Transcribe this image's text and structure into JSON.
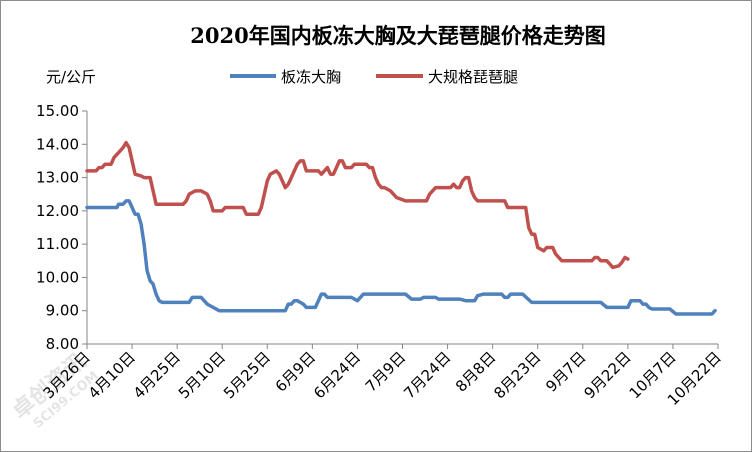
{
  "chart_data": {
    "type": "line",
    "title": "2020年国内板冻大胸及大琵琶腿价格走势图",
    "ylabel": "元/公斤",
    "xlabel": "",
    "ylim": [
      8.0,
      15.0
    ],
    "yticks": [
      "8.00",
      "9.00",
      "10.00",
      "11.00",
      "12.00",
      "13.00",
      "14.00",
      "15.00"
    ],
    "xticks": [
      "3月26日",
      "4月10日",
      "4月25日",
      "5月10日",
      "5月25日",
      "6月9日",
      "6月24日",
      "7月9日",
      "7月24日",
      "8月8日",
      "8月23日",
      "9月7日",
      "9月22日",
      "10月7日",
      "10月22日"
    ],
    "grid": false,
    "legend_position": "top",
    "series": [
      {
        "name": "板冻大胸",
        "color": "#4f81bd",
        "points": [
          [
            0,
            12.1
          ],
          [
            10,
            12.1
          ],
          [
            10.5,
            12.2
          ],
          [
            12,
            12.2
          ],
          [
            13,
            12.3
          ],
          [
            14,
            12.3
          ],
          [
            15,
            12.1
          ],
          [
            16,
            11.9
          ],
          [
            17,
            11.9
          ],
          [
            18,
            11.6
          ],
          [
            19,
            11.0
          ],
          [
            20,
            10.2
          ],
          [
            21,
            9.9
          ],
          [
            22,
            9.8
          ],
          [
            23,
            9.5
          ],
          [
            24,
            9.3
          ],
          [
            25,
            9.25
          ],
          [
            34,
            9.25
          ],
          [
            35,
            9.4
          ],
          [
            38,
            9.4
          ],
          [
            40,
            9.2
          ],
          [
            44,
            9.0
          ],
          [
            66,
            9.0
          ],
          [
            67,
            9.2
          ],
          [
            68,
            9.2
          ],
          [
            69,
            9.3
          ],
          [
            70,
            9.3
          ],
          [
            72,
            9.2
          ],
          [
            73,
            9.1
          ],
          [
            76,
            9.1
          ],
          [
            77,
            9.3
          ],
          [
            78,
            9.5
          ],
          [
            79,
            9.5
          ],
          [
            80,
            9.4
          ],
          [
            88,
            9.4
          ],
          [
            90,
            9.3
          ],
          [
            91,
            9.4
          ],
          [
            92,
            9.5
          ],
          [
            106,
            9.5
          ],
          [
            108,
            9.35
          ],
          [
            111,
            9.35
          ],
          [
            112,
            9.4
          ],
          [
            116,
            9.4
          ],
          [
            117,
            9.35
          ],
          [
            124,
            9.35
          ],
          [
            126,
            9.3
          ],
          [
            129,
            9.3
          ],
          [
            130,
            9.45
          ],
          [
            132,
            9.5
          ],
          [
            138,
            9.5
          ],
          [
            139,
            9.4
          ],
          [
            140,
            9.4
          ],
          [
            141,
            9.5
          ],
          [
            145,
            9.5
          ],
          [
            148,
            9.25
          ],
          [
            171,
            9.25
          ],
          [
            173,
            9.1
          ],
          [
            180,
            9.1
          ],
          [
            181,
            9.3
          ],
          [
            184,
            9.3
          ],
          [
            185,
            9.2
          ],
          [
            186,
            9.2
          ],
          [
            187,
            9.1
          ],
          [
            188,
            9.05
          ],
          [
            194,
            9.05
          ],
          [
            196,
            8.9
          ],
          [
            208,
            8.9
          ],
          [
            209,
            9.0
          ]
        ]
      },
      {
        "name": "大规格琵琶腿",
        "color": "#c0504d",
        "points": [
          [
            0,
            13.2
          ],
          [
            3,
            13.2
          ],
          [
            4,
            13.3
          ],
          [
            5,
            13.3
          ],
          [
            6,
            13.4
          ],
          [
            8,
            13.4
          ],
          [
            9,
            13.6
          ],
          [
            10,
            13.7
          ],
          [
            11,
            13.8
          ],
          [
            12,
            13.9
          ],
          [
            13,
            14.05
          ],
          [
            14,
            13.9
          ],
          [
            15,
            13.5
          ],
          [
            16,
            13.1
          ],
          [
            18,
            13.05
          ],
          [
            19,
            13.0
          ],
          [
            21,
            13.0
          ],
          [
            22,
            12.6
          ],
          [
            23,
            12.2
          ],
          [
            32,
            12.2
          ],
          [
            33,
            12.3
          ],
          [
            34,
            12.5
          ],
          [
            35,
            12.55
          ],
          [
            36,
            12.6
          ],
          [
            38,
            12.6
          ],
          [
            40,
            12.5
          ],
          [
            41,
            12.3
          ],
          [
            42,
            12.0
          ],
          [
            45,
            12.0
          ],
          [
            46,
            12.1
          ],
          [
            52,
            12.1
          ],
          [
            53,
            11.9
          ],
          [
            57,
            11.9
          ],
          [
            58,
            12.1
          ],
          [
            59,
            12.5
          ],
          [
            60,
            12.9
          ],
          [
            61,
            13.1
          ],
          [
            63,
            13.2
          ],
          [
            64,
            13.1
          ],
          [
            65,
            12.9
          ],
          [
            66,
            12.7
          ],
          [
            67,
            12.8
          ],
          [
            68,
            13.0
          ],
          [
            69,
            13.2
          ],
          [
            70,
            13.4
          ],
          [
            71,
            13.5
          ],
          [
            72,
            13.5
          ],
          [
            73,
            13.2
          ],
          [
            77,
            13.2
          ],
          [
            78,
            13.1
          ],
          [
            79,
            13.2
          ],
          [
            80,
            13.3
          ],
          [
            81,
            13.1
          ],
          [
            82,
            13.1
          ],
          [
            83,
            13.3
          ],
          [
            84,
            13.5
          ],
          [
            85,
            13.5
          ],
          [
            86,
            13.3
          ],
          [
            88,
            13.3
          ],
          [
            89,
            13.4
          ],
          [
            93,
            13.4
          ],
          [
            94,
            13.3
          ],
          [
            95,
            13.3
          ],
          [
            96,
            13.0
          ],
          [
            97,
            12.8
          ],
          [
            98,
            12.7
          ],
          [
            99,
            12.7
          ],
          [
            101,
            12.6
          ],
          [
            102,
            12.5
          ],
          [
            103,
            12.4
          ],
          [
            106,
            12.3
          ],
          [
            113,
            12.3
          ],
          [
            114,
            12.5
          ],
          [
            115,
            12.6
          ],
          [
            116,
            12.7
          ],
          [
            121,
            12.7
          ],
          [
            122,
            12.8
          ],
          [
            123,
            12.7
          ],
          [
            124,
            12.7
          ],
          [
            125,
            12.9
          ],
          [
            126,
            13.0
          ],
          [
            127,
            13.0
          ],
          [
            128,
            12.6
          ],
          [
            129,
            12.4
          ],
          [
            130,
            12.3
          ],
          [
            139,
            12.3
          ],
          [
            140,
            12.1
          ],
          [
            146,
            12.1
          ],
          [
            147,
            11.5
          ],
          [
            148,
            11.3
          ],
          [
            149,
            11.3
          ],
          [
            150,
            10.9
          ],
          [
            152,
            10.8
          ],
          [
            153,
            10.9
          ],
          [
            155,
            10.9
          ],
          [
            156,
            10.7
          ],
          [
            158,
            10.5
          ],
          [
            160,
            10.5
          ],
          [
            168,
            10.5
          ],
          [
            169,
            10.6
          ],
          [
            170,
            10.6
          ],
          [
            171,
            10.5
          ],
          [
            173,
            10.5
          ],
          [
            174,
            10.4
          ],
          [
            175,
            10.3
          ],
          [
            177,
            10.35
          ],
          [
            178,
            10.45
          ],
          [
            179,
            10.6
          ],
          [
            180,
            10.55
          ]
        ]
      }
    ]
  },
  "watermark": {
    "text": "卓创资讯",
    "subtext": "SCI99.COM"
  }
}
